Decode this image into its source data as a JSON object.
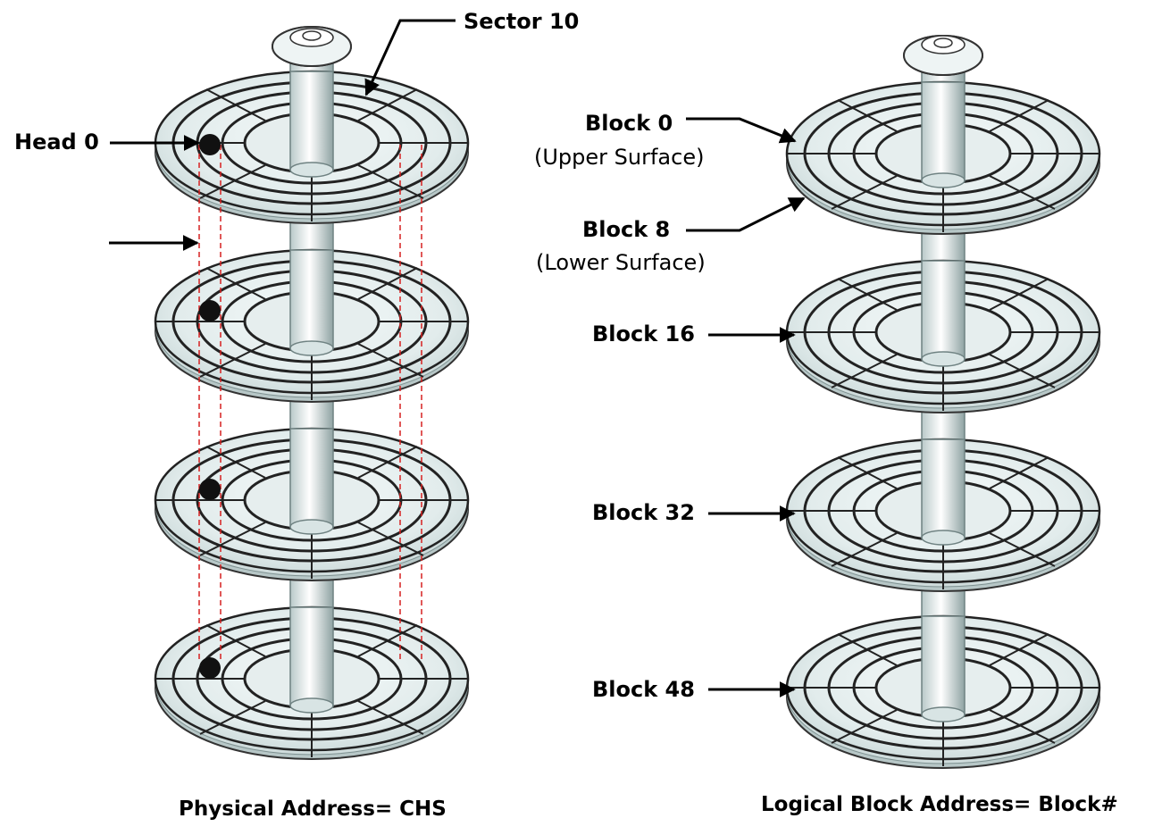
{
  "left_panel": {
    "caption": "Physical Address= CHS",
    "labels": {
      "sector": "Sector 10",
      "head": "Head 0"
    }
  },
  "right_panel": {
    "caption": "Logical Block Address= Block#",
    "labels": {
      "block0": "Block 0",
      "block0_sub": "(Upper Surface)",
      "block8": "Block 8",
      "block8_sub": "(Lower Surface)",
      "block16": "Block 16",
      "block32": "Block 32",
      "block48": "Block 48"
    }
  },
  "colors": {
    "platter_fill": "#e4eeee",
    "platter_edge": "#7f9292",
    "guide_line": "#d62020",
    "head_marker": "#111111"
  }
}
